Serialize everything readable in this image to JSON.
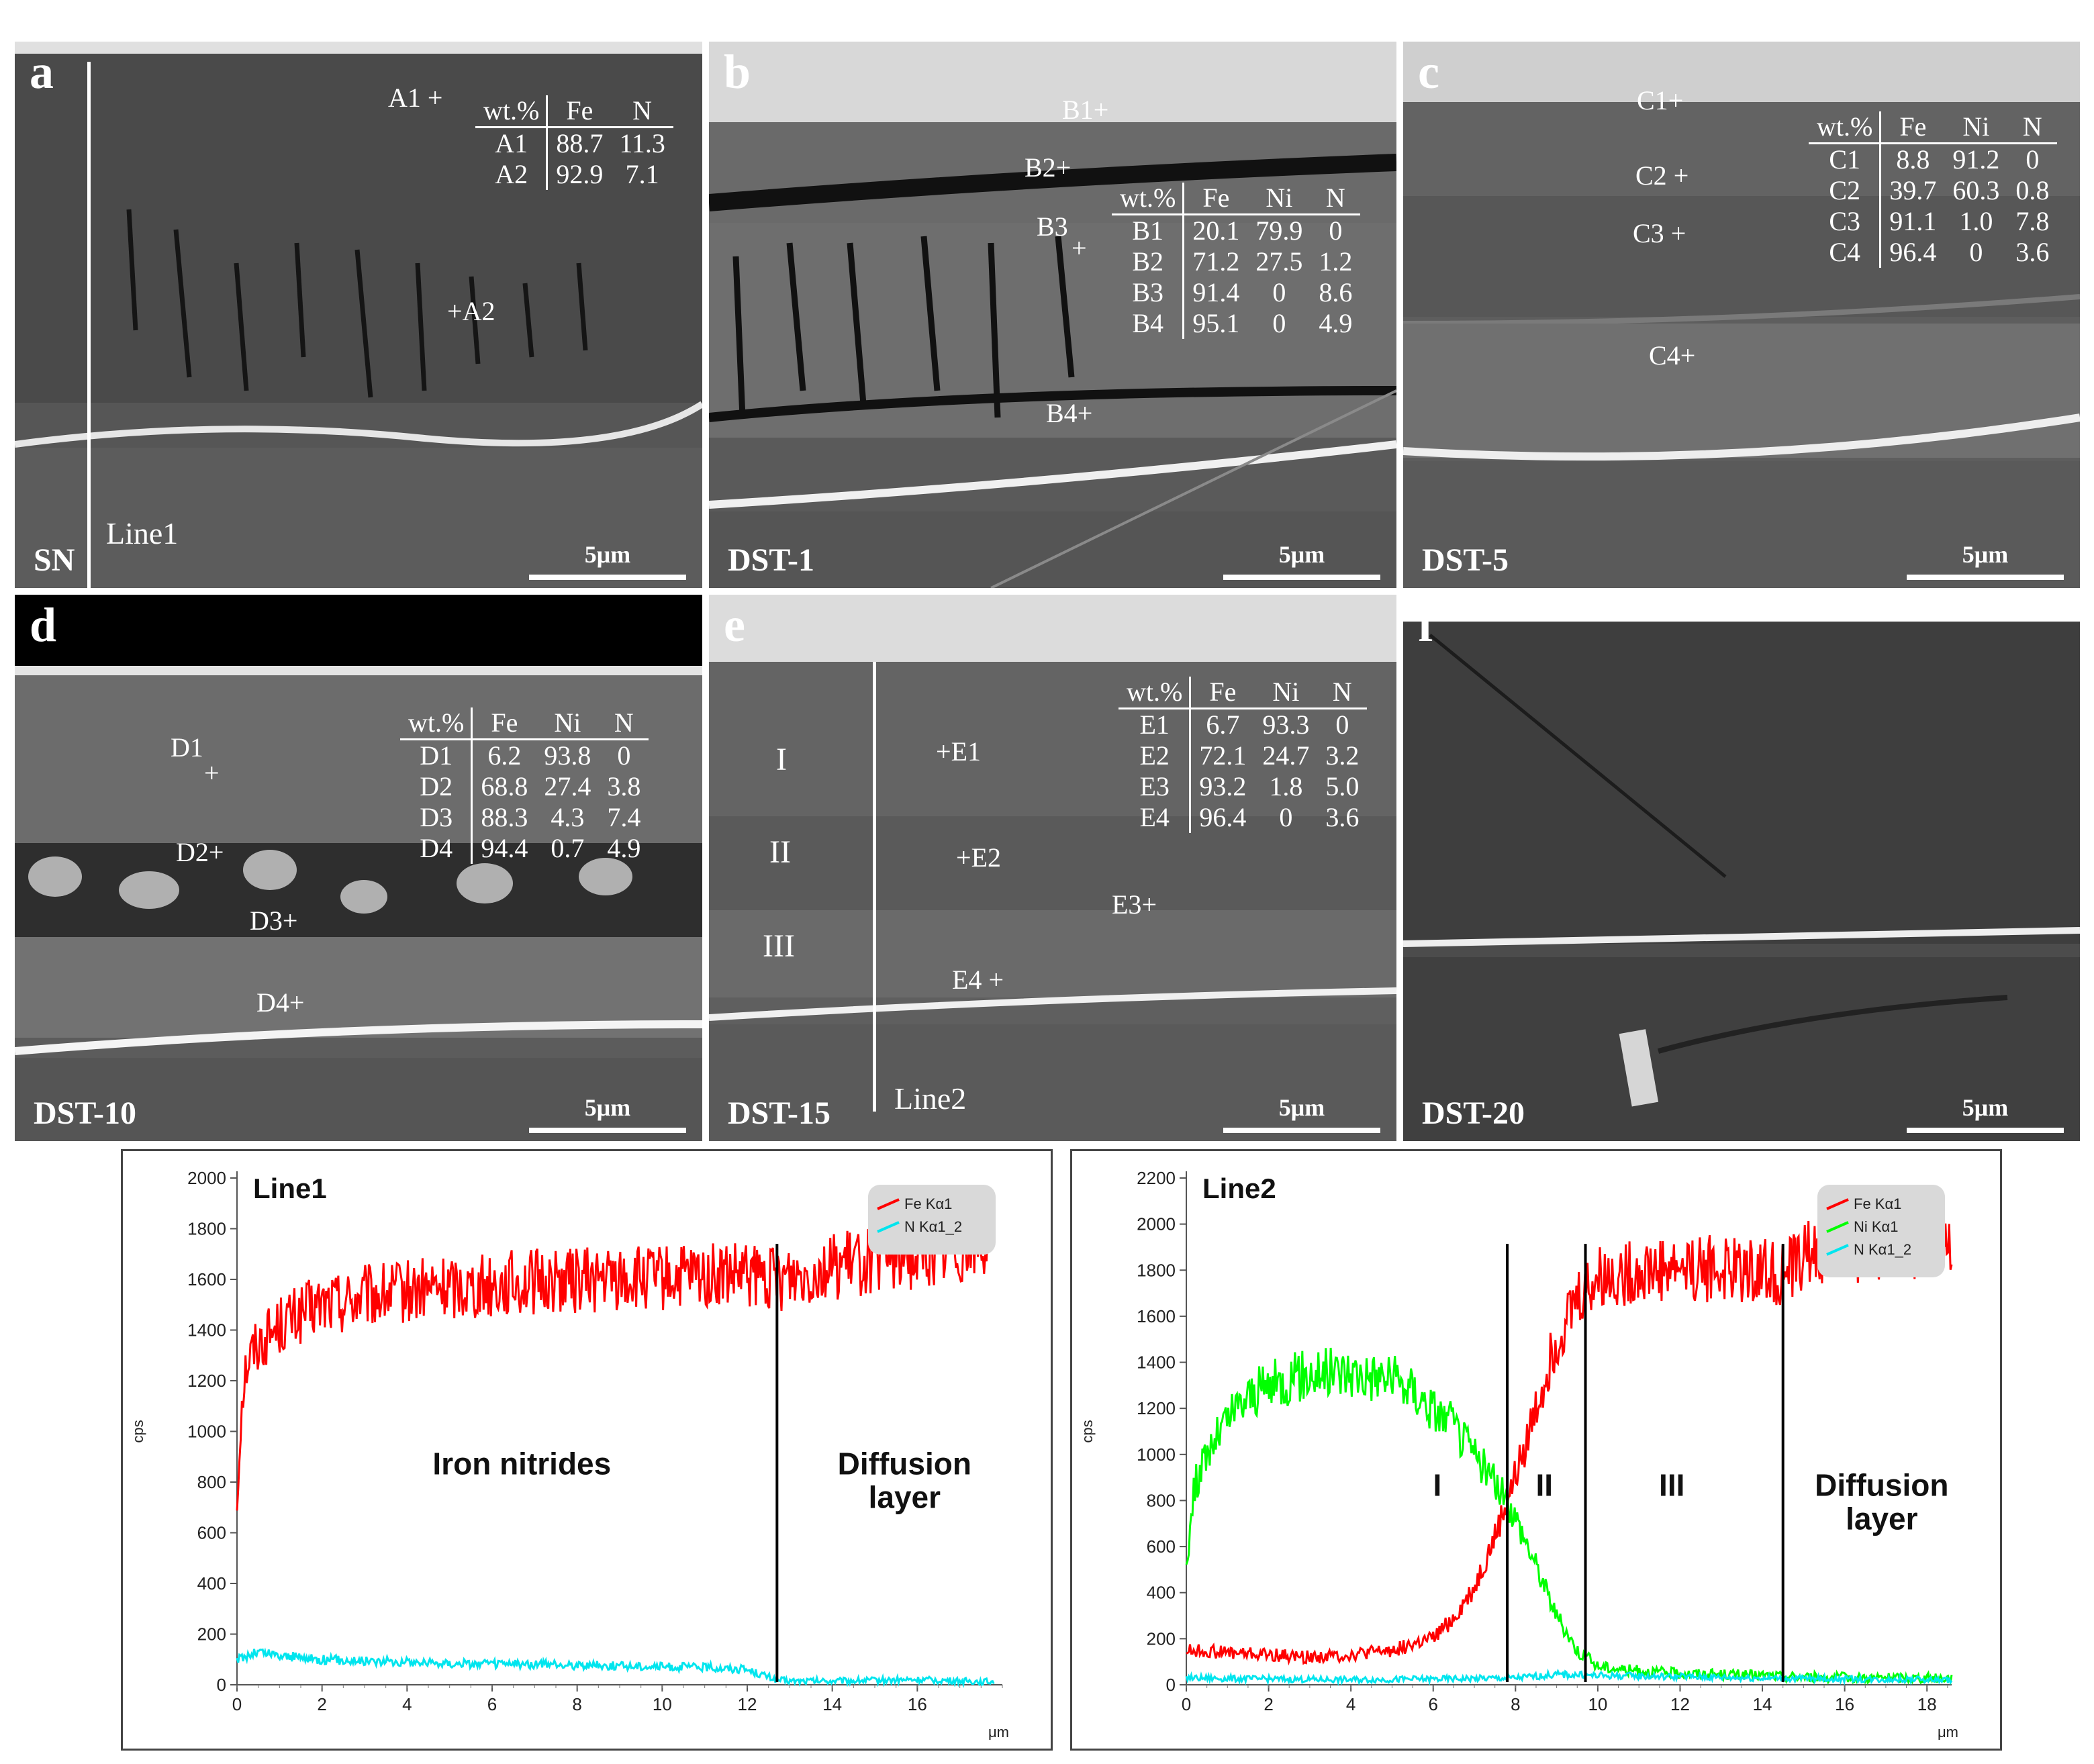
{
  "panels": {
    "a": {
      "letter": "a",
      "sample": "SN",
      "scale": "5μm",
      "line": "Line1",
      "points": [
        "A1",
        "A2"
      ],
      "table": {
        "headers": [
          "wt.%",
          "Fe",
          "N"
        ],
        "rows": [
          [
            "A1",
            "88.7",
            "11.3"
          ],
          [
            "A2",
            "92.9",
            "7.1"
          ]
        ]
      }
    },
    "b": {
      "letter": "b",
      "sample": "DST-1",
      "scale": "5μm",
      "points": [
        "B1",
        "B2",
        "B3",
        "B4"
      ],
      "table": {
        "headers": [
          "wt.%",
          "Fe",
          "Ni",
          "N"
        ],
        "rows": [
          [
            "B1",
            "20.1",
            "79.9",
            "0"
          ],
          [
            "B2",
            "71.2",
            "27.5",
            "1.2"
          ],
          [
            "B3",
            "91.4",
            "0",
            "8.6"
          ],
          [
            "B4",
            "95.1",
            "0",
            "4.9"
          ]
        ]
      }
    },
    "c": {
      "letter": "c",
      "sample": "DST-5",
      "scale": "5μm",
      "points": [
        "C1",
        "C2",
        "C3",
        "C4"
      ],
      "table": {
        "headers": [
          "wt.%",
          "Fe",
          "Ni",
          "N"
        ],
        "rows": [
          [
            "C1",
            "8.8",
            "91.2",
            "0"
          ],
          [
            "C2",
            "39.7",
            "60.3",
            "0.8"
          ],
          [
            "C3",
            "91.1",
            "1.0",
            "7.8"
          ],
          [
            "C4",
            "96.4",
            "0",
            "3.6"
          ]
        ]
      }
    },
    "d": {
      "letter": "d",
      "sample": "DST-10",
      "scale": "5μm",
      "points": [
        "D1",
        "D2",
        "D3",
        "D4"
      ],
      "table": {
        "headers": [
          "wt.%",
          "Fe",
          "Ni",
          "N"
        ],
        "rows": [
          [
            "D1",
            "6.2",
            "93.8",
            "0"
          ],
          [
            "D2",
            "68.8",
            "27.4",
            "3.8"
          ],
          [
            "D3",
            "88.3",
            "4.3",
            "7.4"
          ],
          [
            "D4",
            "94.4",
            "0.7",
            "4.9"
          ]
        ]
      }
    },
    "e": {
      "letter": "e",
      "sample": "DST-15",
      "scale": "5μm",
      "line": "Line2",
      "points": [
        "E1",
        "E2",
        "E3",
        "E4"
      ],
      "regions": [
        "I",
        "II",
        "III"
      ],
      "table": {
        "headers": [
          "wt.%",
          "Fe",
          "Ni",
          "N"
        ],
        "rows": [
          [
            "E1",
            "6.7",
            "93.3",
            "0"
          ],
          [
            "E2",
            "72.1",
            "24.7",
            "3.2"
          ],
          [
            "E3",
            "93.2",
            "1.8",
            "5.0"
          ],
          [
            "E4",
            "96.4",
            "0",
            "3.6"
          ]
        ]
      }
    },
    "f": {
      "letter": "f",
      "sample": "DST-20",
      "scale": "5μm"
    }
  },
  "chart_data": [
    {
      "type": "line",
      "title": "Line1",
      "xlabel": "μm",
      "ylabel": "cps",
      "xlim": [
        0,
        18
      ],
      "ylim": [
        0,
        2000
      ],
      "xticks": [
        0,
        2,
        4,
        6,
        8,
        10,
        12,
        14,
        16
      ],
      "yticks": [
        0,
        200,
        400,
        600,
        800,
        1000,
        1200,
        1400,
        1600,
        1800,
        2000
      ],
      "legend": [
        "Fe Kα1",
        "N Kα1_2"
      ],
      "legend_position": "top-right",
      "boundaries": [
        12.7
      ],
      "annotations": [
        {
          "text": "Iron nitrides",
          "x": 6.7,
          "y": 830
        },
        {
          "text": "Diffusion\nlayer",
          "x": 15.7,
          "y": 830
        }
      ],
      "series": [
        {
          "name": "Fe Kα1",
          "color": "#ff0000",
          "x": [
            0,
            0.1,
            0.2,
            0.4,
            0.6,
            0.8,
            1,
            1.5,
            2,
            3,
            4,
            5,
            6,
            7,
            8,
            9,
            10,
            11,
            12,
            12.7,
            13,
            14,
            15,
            16,
            17,
            17.8
          ],
          "y": [
            700,
            1100,
            1250,
            1330,
            1360,
            1390,
            1420,
            1460,
            1500,
            1530,
            1550,
            1570,
            1580,
            1590,
            1600,
            1600,
            1600,
            1610,
            1610,
            1600,
            1620,
            1650,
            1680,
            1700,
            1730,
            1750
          ]
        },
        {
          "name": "N Kα1_2",
          "color": "#00e5ee",
          "x": [
            0,
            0.5,
            1,
            2,
            3,
            4,
            5,
            6,
            7,
            8,
            9,
            10,
            11,
            12,
            12.7,
            13,
            14,
            15,
            16,
            17,
            17.8
          ],
          "y": [
            100,
            130,
            115,
            100,
            95,
            90,
            85,
            82,
            80,
            78,
            75,
            72,
            70,
            60,
            20,
            15,
            15,
            18,
            20,
            15,
            12
          ]
        }
      ]
    },
    {
      "type": "line",
      "title": "Line2",
      "xlabel": "μm",
      "ylabel": "cps",
      "xlim": [
        0,
        18.6
      ],
      "ylim": [
        0,
        2200
      ],
      "xticks": [
        0,
        2,
        4,
        6,
        8,
        10,
        12,
        14,
        16,
        18
      ],
      "yticks": [
        0,
        200,
        400,
        600,
        800,
        1000,
        1200,
        1400,
        1600,
        1800,
        2000,
        2200
      ],
      "legend": [
        "Fe Kα1",
        "Ni Kα1",
        "N Kα1_2"
      ],
      "legend_position": "top-right",
      "boundaries": [
        7.8,
        9.7,
        14.5
      ],
      "annotations": [
        {
          "text": "I",
          "x": 6.1,
          "y": 820
        },
        {
          "text": "II",
          "x": 8.7,
          "y": 820
        },
        {
          "text": "III",
          "x": 11.8,
          "y": 820
        },
        {
          "text": "Diffusion\nlayer",
          "x": 16.9,
          "y": 820
        }
      ],
      "series": [
        {
          "name": "Fe Kα1",
          "color": "#ff0000",
          "x": [
            0,
            1,
            2,
            3,
            4,
            5,
            6,
            6.5,
            7,
            7.5,
            8,
            8.5,
            9,
            9.5,
            10,
            11,
            12,
            13,
            14,
            14.5,
            15,
            16,
            17,
            18,
            18.6
          ],
          "y": [
            150,
            140,
            130,
            120,
            130,
            150,
            200,
            290,
            420,
            640,
            900,
            1200,
            1500,
            1680,
            1760,
            1800,
            1820,
            1800,
            1810,
            1780,
            1860,
            1890,
            1900,
            1920,
            1930
          ]
        },
        {
          "name": "Ni Kα1",
          "color": "#00ff00",
          "x": [
            0,
            0.2,
            0.5,
            1,
            1.5,
            2,
            3,
            4,
            5,
            5.5,
            6,
            6.5,
            7,
            7.5,
            8,
            8.5,
            9,
            9.5,
            10,
            11,
            12,
            13,
            14,
            15,
            16,
            17,
            18,
            18.6
          ],
          "y": [
            520,
            860,
            1000,
            1150,
            1250,
            1300,
            1350,
            1360,
            1330,
            1280,
            1200,
            1120,
            1000,
            880,
            730,
            520,
            300,
            150,
            80,
            60,
            50,
            45,
            40,
            35,
            32,
            30,
            30,
            30
          ]
        },
        {
          "name": "N Kα1_2",
          "color": "#00e5ee",
          "x": [
            0,
            2,
            4,
            6,
            8,
            9,
            10,
            12,
            14,
            16,
            18,
            18.6
          ],
          "y": [
            30,
            25,
            22,
            25,
            30,
            45,
            40,
            35,
            30,
            25,
            22,
            20
          ]
        }
      ]
    }
  ]
}
